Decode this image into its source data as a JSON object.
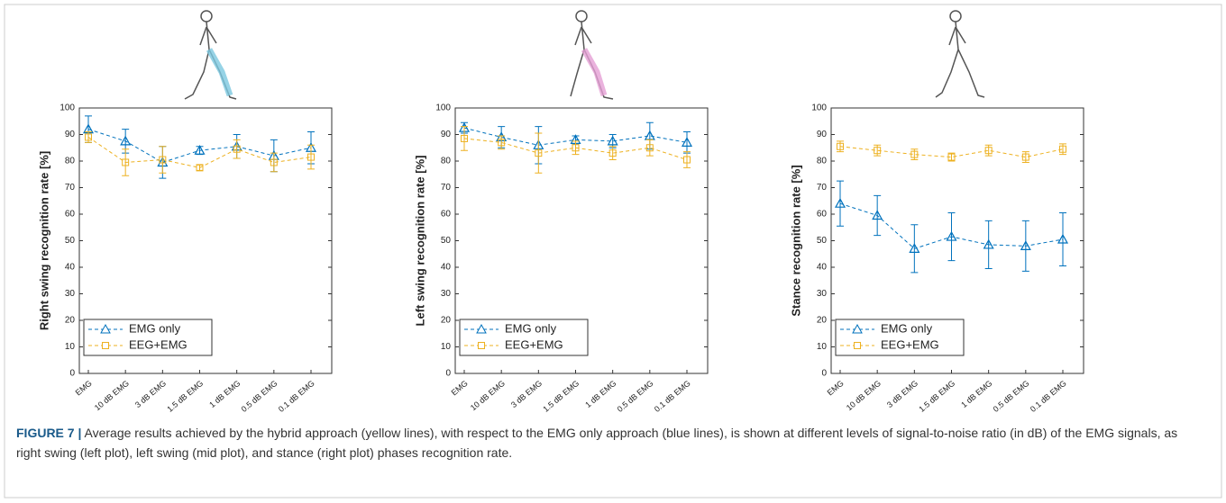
{
  "chart_data": [
    {
      "type": "line",
      "y_label": "Right swing recognition rate [%]",
      "categories": [
        "EMG",
        "10 dB EMG",
        "3 dB EMG",
        "1.5 dB EMG",
        "1 dB EMG",
        "0.5 dB EMG",
        "0.1 dB EMG"
      ],
      "series": [
        {
          "name": "EMG only",
          "color": "#0072bd",
          "marker": "triangle",
          "values": [
            92,
            87.5,
            79.5,
            84,
            85.5,
            82,
            85
          ],
          "errors": [
            5,
            4.5,
            6,
            1.5,
            4.5,
            6,
            6
          ]
        },
        {
          "name": "EEG+EMG",
          "color": "#edb120",
          "marker": "square",
          "values": [
            89,
            79.5,
            80.5,
            77.5,
            84.5,
            79.5,
            81.5
          ],
          "errors": [
            2,
            5,
            5,
            1,
            3.5,
            3.5,
            4.5
          ]
        }
      ],
      "ylim": [
        0,
        100
      ],
      "yticks": [
        0,
        10,
        20,
        30,
        40,
        50,
        60,
        70,
        80,
        90,
        100
      ],
      "grid": false,
      "legend": "lower left"
    },
    {
      "type": "line",
      "y_label": "Left swing recognition rate [%]",
      "categories": [
        "EMG",
        "10 dB EMG",
        "3 dB EMG",
        "1.5 dB EMG",
        "1 dB EMG",
        "0.5 dB EMG",
        "0.1 dB EMG"
      ],
      "series": [
        {
          "name": "EMG only",
          "color": "#0072bd",
          "marker": "triangle",
          "values": [
            92.5,
            89,
            86,
            88,
            87.5,
            89.5,
            87
          ],
          "errors": [
            2,
            4,
            7,
            1.5,
            2.5,
            5,
            4
          ]
        },
        {
          "name": "EEG+EMG",
          "color": "#edb120",
          "marker": "square",
          "values": [
            88.5,
            87,
            83,
            85,
            83,
            85,
            80.5
          ],
          "errors": [
            4.5,
            2.5,
            7.5,
            2.5,
            2.5,
            3,
            3
          ]
        }
      ],
      "ylim": [
        0,
        100
      ],
      "yticks": [
        0,
        10,
        20,
        30,
        40,
        50,
        60,
        70,
        80,
        90,
        100
      ],
      "grid": false,
      "legend": "lower left"
    },
    {
      "type": "line",
      "y_label": "Stance recognition rate [%]",
      "categories": [
        "EMG",
        "10 dB EMG",
        "3 dB EMG",
        "1.5 dB EMG",
        "1 dB EMG",
        "0.5 dB EMG",
        "0.1 dB EMG"
      ],
      "series": [
        {
          "name": "EMG only",
          "color": "#0072bd",
          "marker": "triangle",
          "values": [
            64,
            59.5,
            47,
            51.5,
            48.5,
            48,
            50.5
          ],
          "errors": [
            8.5,
            7.5,
            9,
            9,
            9,
            9.5,
            10
          ]
        },
        {
          "name": "EEG+EMG",
          "color": "#edb120",
          "marker": "square",
          "values": [
            85.5,
            84,
            82.5,
            81.5,
            84,
            81.5,
            84.5
          ],
          "errors": [
            2,
            2,
            2,
            1.5,
            2,
            2,
            2
          ]
        }
      ],
      "ylim": [
        0,
        100
      ],
      "yticks": [
        0,
        10,
        20,
        30,
        40,
        50,
        60,
        70,
        80,
        90,
        100
      ],
      "grid": false,
      "legend": "lower left"
    }
  ],
  "caption": {
    "label": "FIGURE 7 |",
    "text": "Average results achieved by the hybrid approach (yellow lines), with respect to the EMG only approach (blue lines), is shown at different levels of signal-to-noise ratio (in dB) of the EMG signals, as right swing (left plot), left swing (mid plot), and stance (right plot) phases recognition rate."
  }
}
